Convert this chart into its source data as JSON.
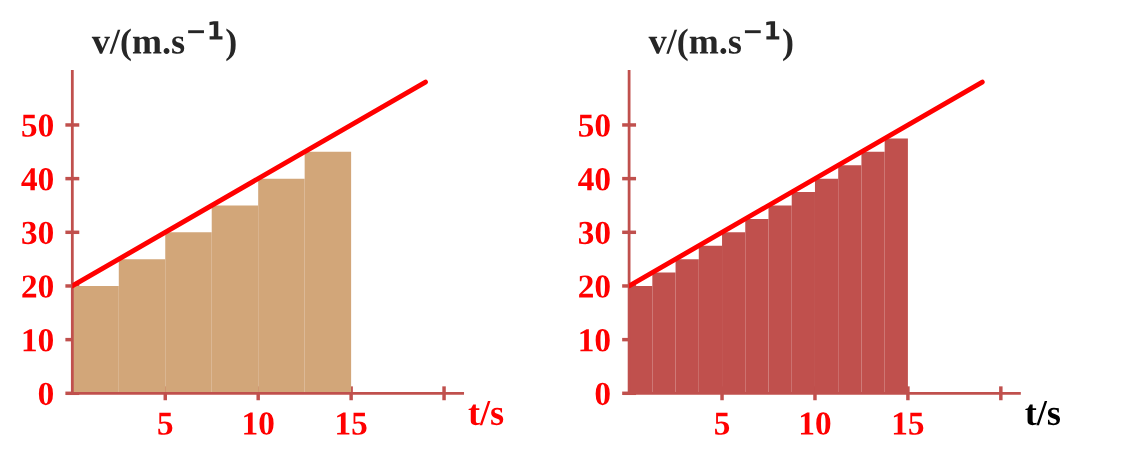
{
  "chart_data": [
    {
      "type": "bar",
      "xlabel": "t/s",
      "ylabel": "v/(m.s$^{−1}$)",
      "xlim": [
        0,
        21
      ],
      "ylim": [
        0,
        60
      ],
      "xticks": [
        5,
        10,
        15,
        {
          "value": 20,
          "label": null
        }
      ],
      "yticks": [
        0,
        10,
        20,
        30,
        40,
        50
      ],
      "grid": false,
      "legend": false,
      "series": [
        {
          "color": "#d2a679",
          "x": [
            1.25,
            3.75,
            6.25,
            8.75,
            11.25,
            13.75
          ],
          "values": [
            20,
            25,
            30,
            35,
            40,
            45
          ]
        },
        {
          "type": "line",
          "color": "#ff0000",
          "x": [
            0,
            19
          ],
          "values": [
            20,
            58
          ]
        }
      ]
    },
    {
      "type": "bar",
      "xlabel": "t/s",
      "ylabel": "v/(m.s$^{−1}$)",
      "xlim": [
        0,
        21
      ],
      "ylim": [
        0,
        60
      ],
      "xticks": [
        5,
        10,
        15,
        {
          "value": 20,
          "label": null
        }
      ],
      "yticks": [
        0,
        10,
        20,
        30,
        40,
        50
      ],
      "grid": false,
      "legend": false,
      "series": [
        {
          "color": "#c0504d",
          "x": [
            0.625,
            1.875,
            3.125,
            4.375,
            5.625,
            6.875,
            8.125,
            9.375,
            10.625,
            11.875,
            13.125,
            14.375
          ],
          "values": [
            20,
            22.5,
            25,
            27.5,
            30,
            32.5,
            35,
            37.5,
            40,
            42.5,
            45,
            47.5
          ]
        },
        {
          "type": "line",
          "color": "#ff0000",
          "x": [
            0,
            19
          ],
          "values": [
            20,
            58
          ]
        }
      ]
    }
  ]
}
